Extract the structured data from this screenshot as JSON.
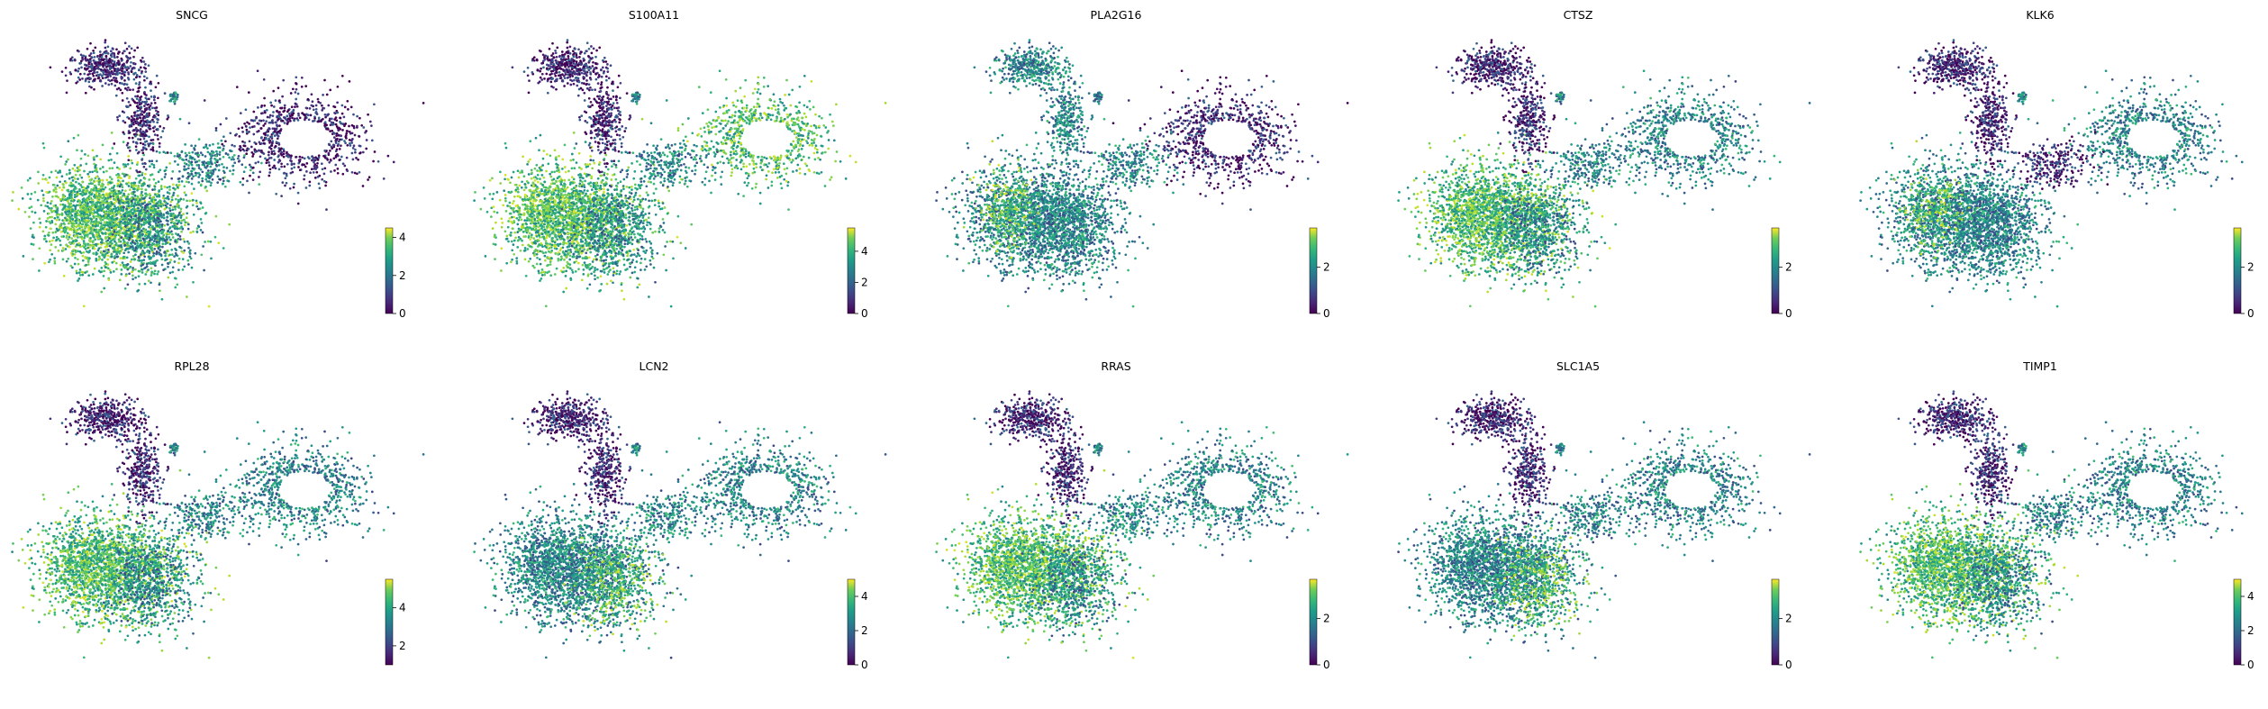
{
  "figure": {
    "colormap": "viridis",
    "background": "#ffffff"
  },
  "chart_data": [
    {
      "type": "scatter",
      "title": "SNCG",
      "xlabel": "",
      "ylabel": "",
      "colorbar": {
        "range": [
          0,
          4.5
        ],
        "ticks": [
          0,
          2,
          4
        ]
      },
      "expression_note": "",
      "high_region": "lower-left cluster",
      "low_region": "upper-left arm and right cluster"
    },
    {
      "type": "scatter",
      "title": "S100A11",
      "xlabel": "",
      "ylabel": "",
      "colorbar": {
        "range": [
          0,
          5.5
        ],
        "ticks": [
          0,
          2,
          4
        ]
      },
      "high_region": "broad, highest lower-left and right cluster",
      "low_region": "upper-left arm"
    },
    {
      "type": "scatter",
      "title": "PLA2G16",
      "xlabel": "",
      "ylabel": "",
      "colorbar": {
        "range": [
          0,
          3.7
        ],
        "ticks": [
          0,
          2
        ]
      },
      "high_region": "left edge",
      "low_region": "right cluster"
    },
    {
      "type": "scatter",
      "title": "CTSZ",
      "xlabel": "",
      "ylabel": "",
      "colorbar": {
        "range": [
          0,
          3.7
        ],
        "ticks": [
          0,
          2
        ]
      },
      "high_region": "lower-left cluster",
      "low_region": "upper-left arm"
    },
    {
      "type": "scatter",
      "title": "KLK6",
      "xlabel": "",
      "ylabel": "",
      "colorbar": {
        "range": [
          0,
          3.7
        ],
        "ticks": [
          0,
          2
        ]
      },
      "high_region": "left edge",
      "low_region": "upper-left arm and center"
    },
    {
      "type": "scatter",
      "title": "RPL28",
      "xlabel": "",
      "ylabel": "",
      "colorbar": {
        "range": [
          1,
          5.5
        ],
        "ticks": [
          2,
          4
        ]
      },
      "high_region": "lower-left cluster",
      "low_region": "upper-left arm"
    },
    {
      "type": "scatter",
      "title": "LCN2",
      "xlabel": "",
      "ylabel": "",
      "colorbar": {
        "range": [
          0,
          5
        ],
        "ticks": [
          0,
          2,
          4
        ]
      },
      "high_region": "lower-center",
      "low_region": "upper-left arm"
    },
    {
      "type": "scatter",
      "title": "RRAS",
      "xlabel": "",
      "ylabel": "",
      "colorbar": {
        "range": [
          0,
          3.7
        ],
        "ticks": [
          0,
          2
        ]
      },
      "high_region": "lower-left cluster",
      "low_region": "upper-left arm"
    },
    {
      "type": "scatter",
      "title": "SLC1A5",
      "xlabel": "",
      "ylabel": "",
      "colorbar": {
        "range": [
          0,
          3.7
        ],
        "ticks": [
          0,
          2
        ]
      },
      "high_region": "lower-center",
      "low_region": "upper-left arm"
    },
    {
      "type": "scatter",
      "title": "TIMP1",
      "xlabel": "",
      "ylabel": "",
      "colorbar": {
        "range": [
          0,
          5
        ],
        "ticks": [
          0,
          2,
          4
        ]
      },
      "high_region": "lower-left cluster",
      "low_region": "upper-left arm"
    }
  ]
}
